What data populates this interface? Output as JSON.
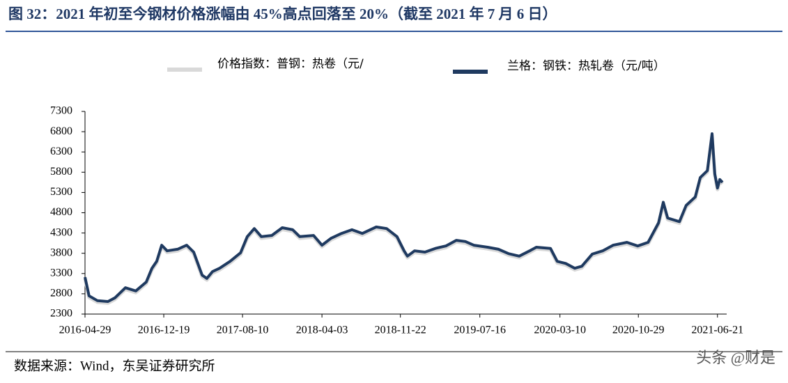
{
  "chart_data": {
    "type": "line",
    "title": "图 32：2021 年初至今钢材价格涨幅由 45%高点回落至 20%（截至 2021 年 7 月 6 日）",
    "source": "数据来源：Wind，东吴证券研究所",
    "watermark": "头条 @财是",
    "x": [
      "2016-04-29",
      "2016-05-11",
      "2016-06-05",
      "2016-07-06",
      "2016-07-27",
      "2016-08-27",
      "2016-09-27",
      "2016-10-28",
      "2016-11-14",
      "2016-11-28",
      "2016-12-13",
      "2016-12-29",
      "2017-01-29",
      "2017-02-25",
      "2017-03-18",
      "2017-04-12",
      "2017-04-26",
      "2017-05-13",
      "2017-06-03",
      "2017-07-04",
      "2017-08-04",
      "2017-08-24",
      "2017-09-14",
      "2017-10-05",
      "2017-11-05",
      "2017-12-06",
      "2018-01-06",
      "2018-01-27",
      "2018-03-09",
      "2018-04-03",
      "2018-04-30",
      "2018-05-31",
      "2018-07-01",
      "2018-08-01",
      "2018-09-11",
      "2018-10-12",
      "2018-11-12",
      "2018-12-03",
      "2018-12-13",
      "2019-01-03",
      "2019-02-03",
      "2019-03-06",
      "2019-04-06",
      "2019-05-07",
      "2019-06-03",
      "2019-06-28",
      "2019-08-08",
      "2019-09-09",
      "2019-10-10",
      "2019-11-10",
      "2019-12-11",
      "2019-12-31",
      "2020-02-11",
      "2020-03-02",
      "2020-03-27",
      "2020-04-23",
      "2020-05-14",
      "2020-06-14",
      "2020-07-15",
      "2020-08-15",
      "2020-09-25",
      "2020-10-27",
      "2020-11-27",
      "2020-12-28",
      "2021-01-11",
      "2021-01-24",
      "2021-02-28",
      "2021-03-20",
      "2021-04-16",
      "2021-05-01",
      "2021-05-22",
      "2021-06-05",
      "2021-06-13",
      "2021-06-21",
      "2021-06-28",
      "2021-07-06"
    ],
    "series": [
      {
        "name": "价格指数：普钢：热卷（元/",
        "color": "#d9d9d9",
        "values": [
          3170,
          2710,
          2590,
          2570,
          2660,
          2910,
          2830,
          3050,
          3390,
          3560,
          3960,
          3820,
          3860,
          3960,
          3790,
          3220,
          3140,
          3310,
          3390,
          3560,
          3770,
          4170,
          4370,
          4170,
          4200,
          4390,
          4340,
          4170,
          4200,
          3960,
          4130,
          4250,
          4340,
          4250,
          4410,
          4370,
          4170,
          3820,
          3690,
          3820,
          3790,
          3880,
          3940,
          4080,
          4050,
          3960,
          3910,
          3860,
          3750,
          3690,
          3820,
          3910,
          3880,
          3560,
          3510,
          3390,
          3440,
          3740,
          3820,
          3960,
          4030,
          3940,
          4030,
          4510,
          5020,
          4630,
          4540,
          4940,
          5150,
          5630,
          5800,
          6700,
          5720,
          5370,
          5580,
          5510
        ]
      },
      {
        "name": "兰格：钢铁：热轧卷（元/吨）",
        "color": "#1f3a60",
        "values": [
          3210,
          2750,
          2630,
          2610,
          2700,
          2950,
          2870,
          3090,
          3430,
          3600,
          4000,
          3860,
          3900,
          4000,
          3830,
          3260,
          3180,
          3350,
          3430,
          3600,
          3810,
          4210,
          4410,
          4210,
          4240,
          4430,
          4380,
          4210,
          4240,
          4000,
          4170,
          4290,
          4380,
          4290,
          4450,
          4410,
          4210,
          3860,
          3730,
          3860,
          3830,
          3920,
          3980,
          4120,
          4090,
          4000,
          3950,
          3900,
          3790,
          3730,
          3860,
          3950,
          3920,
          3600,
          3550,
          3430,
          3480,
          3780,
          3860,
          4000,
          4070,
          3980,
          4070,
          4550,
          5060,
          4670,
          4580,
          4980,
          5190,
          5670,
          5840,
          6750,
          5760,
          5410,
          5620,
          5550
        ]
      }
    ],
    "xlim": [
      "2016-04-29",
      "2021-07-06"
    ],
    "xticks": [
      "2016-04-29",
      "2016-12-19",
      "2017-08-10",
      "2018-04-03",
      "2018-11-22",
      "2019-07-16",
      "2020-03-10",
      "2020-10-29",
      "2021-06-21"
    ],
    "ylim": [
      2300,
      7300
    ],
    "yticks": [
      2300,
      2800,
      3300,
      3800,
      4300,
      4800,
      5300,
      5800,
      6300,
      6800,
      7300
    ]
  }
}
